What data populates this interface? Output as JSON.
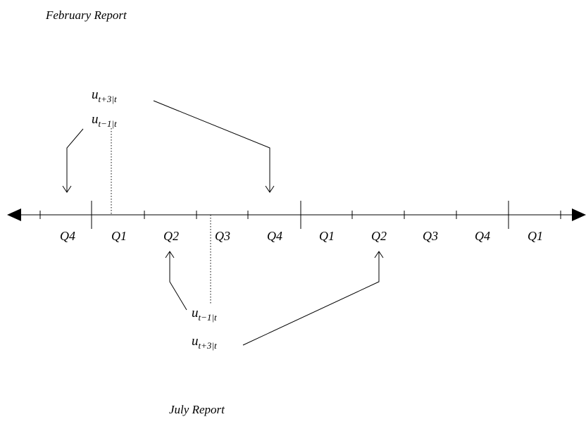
{
  "header": {
    "title": "February Report"
  },
  "footer": {
    "title": "July Report"
  },
  "quarters": [
    "Q4",
    "Q1",
    "Q2",
    "Q3",
    "Q4",
    "Q1",
    "Q2",
    "Q3",
    "Q4",
    "Q1"
  ],
  "february_labels": [
    {
      "base": "u",
      "sub": "t+3|t"
    },
    {
      "base": "u",
      "sub": "t−1|t"
    }
  ],
  "july_labels": [
    {
      "base": "u",
      "sub": "t−1|t"
    },
    {
      "base": "u",
      "sub": "t+3|t"
    }
  ]
}
